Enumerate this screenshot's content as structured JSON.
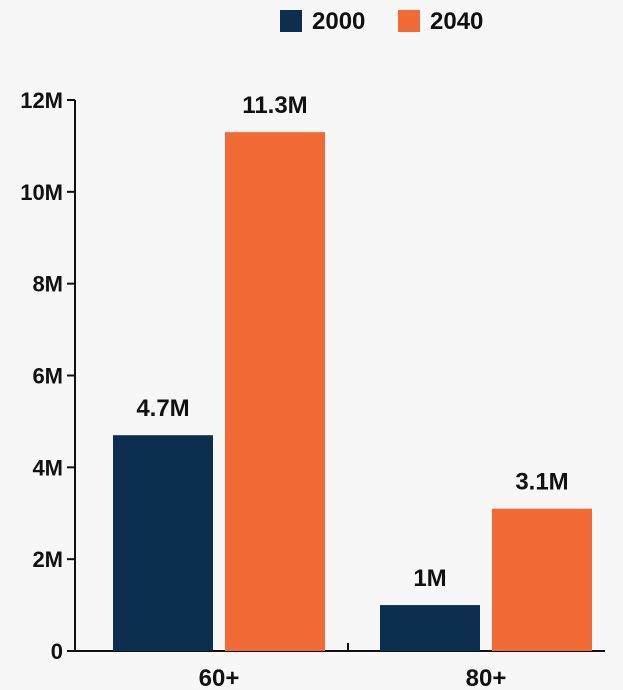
{
  "chart_data": {
    "type": "bar",
    "categories": [
      "60+",
      "80+"
    ],
    "series": [
      {
        "name": "2000",
        "values": [
          4.7,
          1.0
        ],
        "labels": [
          "4.7M",
          "1M"
        ],
        "color": "#0d2f4f"
      },
      {
        "name": "2040",
        "values": [
          11.3,
          3.1
        ],
        "labels": [
          "11.3M",
          "3.1M"
        ],
        "color": "#f26a35"
      }
    ],
    "y_ticks": [
      0,
      2,
      4,
      6,
      8,
      10,
      12
    ],
    "y_tick_labels": [
      "0",
      "2M",
      "4M",
      "6M",
      "8M",
      "10M",
      "12M"
    ],
    "ylim": [
      0,
      12
    ],
    "grid": false,
    "legend_position": "top-center",
    "axis_color": "#111111",
    "background_color": "#f7f7f7"
  }
}
